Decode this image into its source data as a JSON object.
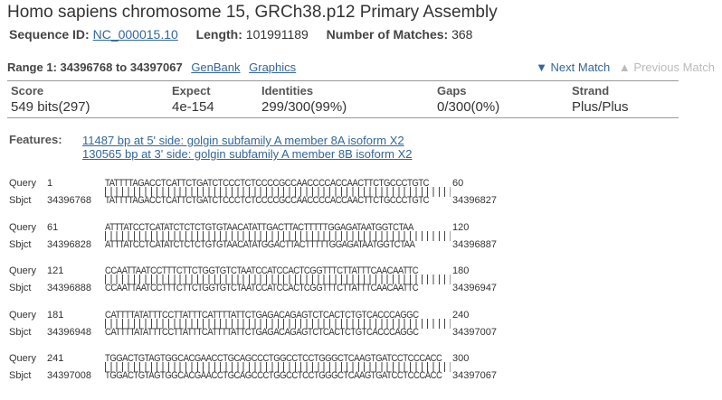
{
  "header": {
    "title": "Homo sapiens chromosome 15, GRCh38.p12 Primary Assembly",
    "seq_id_label": "Sequence ID:",
    "seq_id": "NC_000015.10",
    "length_label": "Length:",
    "length": "101991189",
    "matches_label": "Number of Matches:",
    "matches": "368"
  },
  "range": {
    "title": "Range 1: 34396768 to 34397067",
    "genbank": "GenBank",
    "graphics": "Graphics",
    "next": "▼ Next Match",
    "prev": "▲ Previous Match"
  },
  "stats": {
    "score_label": "Score",
    "score": "549 bits(297)",
    "expect_label": "Expect",
    "expect": "4e-154",
    "identities_label": "Identities",
    "identities": "299/300(99%)",
    "gaps_label": "Gaps",
    "gaps": "0/300(0%)",
    "strand_label": "Strand",
    "strand": "Plus/Plus"
  },
  "features": {
    "label": "Features:",
    "items": [
      "11487 bp at 5' side: golgin subfamily A member 8A isoform X2",
      "130565 bp at 3' side: golgin subfamily A member 8B isoform X2"
    ]
  },
  "alignment": [
    {
      "q_label": "Query",
      "q_start": "1",
      "q_seq": "TATTTTAGACCTCATTCTGATCTCCCTCTCCCCGCCAACCCCACCAACTTCTGCCCTGTC",
      "q_end": "60",
      "s_label": "Sbjct",
      "s_start": "34396768",
      "s_seq": "TATTTTAGACCTCATTCTGATCTCCCTCTCCCCGCCAACCCCACCAACTTCTGCCCTGTC",
      "s_end": "34396827"
    },
    {
      "q_label": "Query",
      "q_start": "61",
      "q_seq": "ATTTATCCTCATATCTCTCTGTGTAACATATTGACTTACTTTTTGGAGATAATGGTCTAA",
      "q_end": "120",
      "s_label": "Sbjct",
      "s_start": "34396828",
      "s_seq": "ATTTATCCTCATATCTCTCTGTGTAACATATGGACTTACTTTTTGGAGATAATGGTCTAA",
      "s_end": "34396887"
    },
    {
      "q_label": "Query",
      "q_start": "121",
      "q_seq": "CCAATTAATCCTTTCTTCTGGTGTCTAATCCATCCACTCGGTTTCTTATTTCAACAATTC",
      "q_end": "180",
      "s_label": "Sbjct",
      "s_start": "34396888",
      "s_seq": "CCAATTAATCCTTTCTTCTGGTGTCTAATCCATCCACTCGGTTTCTTATTTCAACAATTC",
      "s_end": "34396947"
    },
    {
      "q_label": "Query",
      "q_start": "181",
      "q_seq": "CATTTTATATTTCCTTATTTCATTTTATTCTGAGACAGAGTCTCACTCTGTCACCCAGGC",
      "q_end": "240",
      "s_label": "Sbjct",
      "s_start": "34396948",
      "s_seq": "CATTTTATATTTCCTTATTTCATTTTATTCTGAGACAGAGTCTCACTCTGTCACCCAGGC",
      "s_end": "34397007"
    },
    {
      "q_label": "Query",
      "q_start": "241",
      "q_seq": "TGGACTGTAGTGGCACGAACCTGCAGCCCTGGCCTCCTGGGCTCAAGTGATCCTCCCACC",
      "q_end": "300",
      "s_label": "Sbjct",
      "s_start": "34397008",
      "s_seq": "TGGACTGTAGTGGCACGAACCTGCAGCCCTGGCCTCCTGGGCTCAAGTGATCCTCCCACC",
      "s_end": "34397067"
    }
  ]
}
